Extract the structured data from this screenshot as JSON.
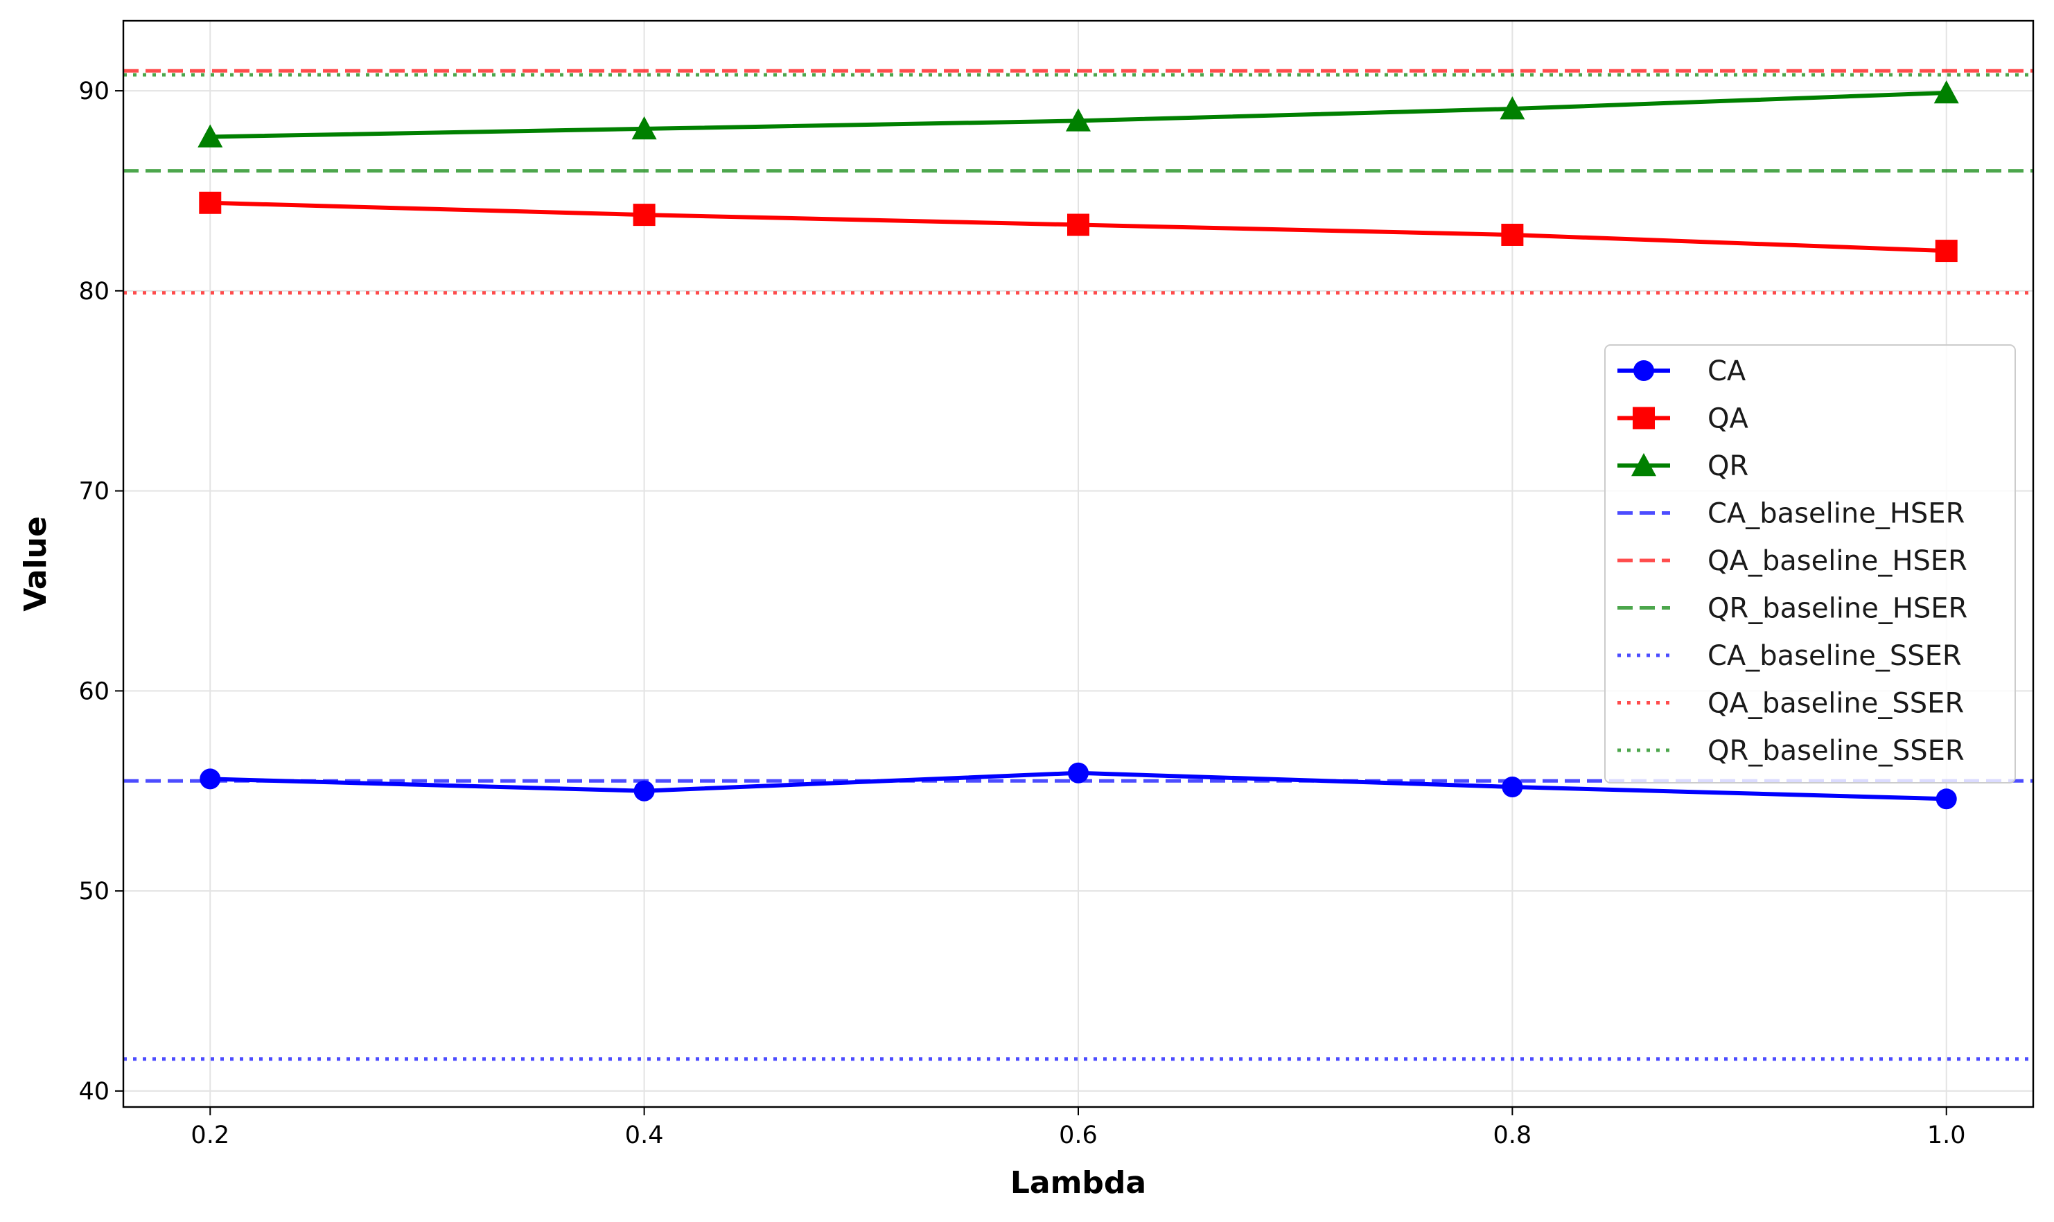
{
  "chart_data": {
    "type": "line",
    "xlabel": "Lambda",
    "ylabel": "Value",
    "x": [
      0.2,
      0.4,
      0.6,
      0.8,
      1.0
    ],
    "xticks": [
      "0.2",
      "0.4",
      "0.6",
      "0.8",
      "1.0"
    ],
    "yticks": [
      "40",
      "50",
      "60",
      "70",
      "80",
      "90"
    ],
    "xlim": [
      0.16,
      1.04
    ],
    "ylim": [
      39.2,
      93.5
    ],
    "grid": true,
    "legend_position": "center-right",
    "series": [
      {
        "name": "CA",
        "color": "#0000ff",
        "marker": "circle",
        "values": [
          55.6,
          55.0,
          55.9,
          55.2,
          54.6
        ]
      },
      {
        "name": "QA",
        "color": "#ff0000",
        "marker": "square",
        "values": [
          84.4,
          83.8,
          83.3,
          82.8,
          82.0
        ]
      },
      {
        "name": "QR",
        "color": "#008000",
        "marker": "triangle",
        "values": [
          87.7,
          88.1,
          88.5,
          89.1,
          89.9
        ]
      }
    ],
    "baselines": [
      {
        "name": "CA_baseline_HSER",
        "color": "#0000ff",
        "style": "dashed",
        "value": 55.5
      },
      {
        "name": "QA_baseline_HSER",
        "color": "#ff0000",
        "style": "dashed",
        "value": 91.0
      },
      {
        "name": "QR_baseline_HSER",
        "color": "#008000",
        "style": "dashed",
        "value": 86.0
      },
      {
        "name": "CA_baseline_SSER",
        "color": "#0000ff",
        "style": "dotted",
        "value": 41.6
      },
      {
        "name": "QA_baseline_SSER",
        "color": "#ff0000",
        "style": "dotted",
        "value": 79.9
      },
      {
        "name": "QR_baseline_SSER",
        "color": "#008000",
        "style": "dotted",
        "value": 90.8
      }
    ]
  }
}
